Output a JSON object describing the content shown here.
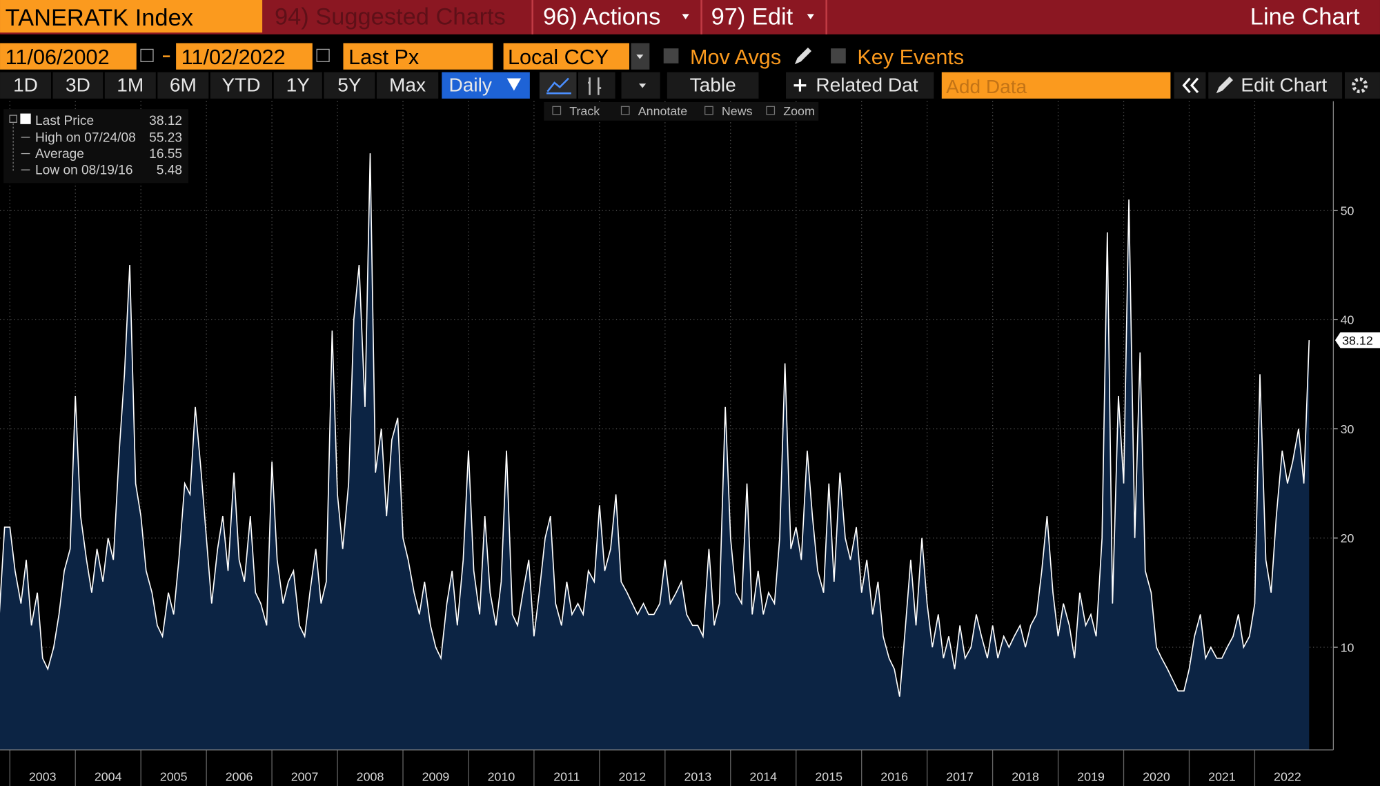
{
  "header": {
    "ticker": "TANERATK Index",
    "suggested": "94) Suggested Charts",
    "actions": "96) Actions",
    "edit": "97) Edit",
    "chart_kind": "Line Chart"
  },
  "controls": {
    "start_date": "11/06/2002",
    "end_date": "11/02/2022",
    "field": "Last Px",
    "currency": "Local CCY",
    "mov_avgs": "Mov Avgs",
    "key_events": "Key Events"
  },
  "periods": [
    "1D",
    "3D",
    "1M",
    "6M",
    "YTD",
    "1Y",
    "5Y",
    "Max"
  ],
  "frequency": "Daily",
  "buttons": {
    "table": "Table",
    "related": "Related Dat",
    "add_data": "Add Data",
    "edit_chart": "Edit Chart"
  },
  "chart_tools": [
    "Track",
    "Annotate",
    "News",
    "Zoom"
  ],
  "chart_data": {
    "type": "line",
    "x": [
      2002.83,
      2002.92,
      2003,
      2003.08,
      2003.17,
      2003.25,
      2003.33,
      2003.42,
      2003.5,
      2003.58,
      2003.67,
      2003.75,
      2003.83,
      2003.92,
      2004,
      2004.08,
      2004.17,
      2004.25,
      2004.33,
      2004.42,
      2004.5,
      2004.58,
      2004.67,
      2004.75,
      2004.83,
      2004.92,
      2005,
      2005.08,
      2005.17,
      2005.25,
      2005.33,
      2005.42,
      2005.5,
      2005.58,
      2005.67,
      2005.75,
      2005.83,
      2005.92,
      2006,
      2006.08,
      2006.17,
      2006.25,
      2006.33,
      2006.42,
      2006.5,
      2006.58,
      2006.67,
      2006.75,
      2006.83,
      2006.92,
      2007,
      2007.08,
      2007.17,
      2007.25,
      2007.33,
      2007.42,
      2007.5,
      2007.58,
      2007.67,
      2007.75,
      2007.83,
      2007.92,
      2008,
      2008.08,
      2008.17,
      2008.25,
      2008.33,
      2008.42,
      2008.5,
      2008.58,
      2008.67,
      2008.75,
      2008.83,
      2008.92,
      2009,
      2009.08,
      2009.17,
      2009.25,
      2009.33,
      2009.42,
      2009.5,
      2009.58,
      2009.67,
      2009.75,
      2009.83,
      2009.92,
      2010,
      2010.08,
      2010.17,
      2010.25,
      2010.33,
      2010.42,
      2010.5,
      2010.58,
      2010.67,
      2010.75,
      2010.83,
      2010.92,
      2011,
      2011.08,
      2011.17,
      2011.25,
      2011.33,
      2011.42,
      2011.5,
      2011.58,
      2011.67,
      2011.75,
      2011.83,
      2011.92,
      2012,
      2012.08,
      2012.17,
      2012.25,
      2012.33,
      2012.42,
      2012.5,
      2012.58,
      2012.67,
      2012.75,
      2012.83,
      2012.92,
      2013,
      2013.08,
      2013.17,
      2013.25,
      2013.33,
      2013.42,
      2013.5,
      2013.58,
      2013.67,
      2013.75,
      2013.83,
      2013.92,
      2014,
      2014.08,
      2014.17,
      2014.25,
      2014.33,
      2014.42,
      2014.5,
      2014.58,
      2014.67,
      2014.75,
      2014.83,
      2014.92,
      2015,
      2015.08,
      2015.17,
      2015.25,
      2015.33,
      2015.42,
      2015.5,
      2015.58,
      2015.67,
      2015.75,
      2015.83,
      2015.92,
      2016,
      2016.08,
      2016.17,
      2016.25,
      2016.33,
      2016.42,
      2016.5,
      2016.58,
      2016.67,
      2016.75,
      2016.83,
      2016.92,
      2017,
      2017.08,
      2017.17,
      2017.25,
      2017.33,
      2017.42,
      2017.5,
      2017.58,
      2017.67,
      2017.75,
      2017.83,
      2017.92,
      2018,
      2018.08,
      2018.17,
      2018.25,
      2018.33,
      2018.42,
      2018.5,
      2018.58,
      2018.67,
      2018.75,
      2018.83,
      2018.92,
      2019,
      2019.08,
      2019.17,
      2019.25,
      2019.33,
      2019.42,
      2019.5,
      2019.58,
      2019.67,
      2019.75,
      2019.83,
      2019.92,
      2020,
      2020.08,
      2020.17,
      2020.25,
      2020.33,
      2020.42,
      2020.5,
      2020.58,
      2020.67,
      2020.75,
      2020.83,
      2020.92,
      2021,
      2021.08,
      2021.17,
      2021.25,
      2021.33,
      2021.42,
      2021.5,
      2021.58,
      2021.67,
      2021.75,
      2021.83,
      2021.92,
      2022,
      2022.08,
      2022.17,
      2022.25,
      2022.33,
      2022.42,
      2022.5,
      2022.58,
      2022.67,
      2022.75,
      2022.83
    ],
    "series": [
      {
        "name": "Last Price",
        "color": "#ffffff",
        "fill": "#0c2444",
        "values": [
          12,
          21,
          21,
          17,
          14,
          18,
          12,
          15,
          9,
          8,
          10,
          13,
          17,
          19,
          33,
          22,
          18,
          15,
          19,
          16,
          20,
          18,
          28,
          35,
          45,
          25,
          22,
          17,
          15,
          12,
          11,
          15,
          13,
          18,
          25,
          24,
          32,
          26,
          20,
          14,
          19,
          22,
          17,
          26,
          18,
          16,
          22,
          15,
          14,
          12,
          27,
          18,
          14,
          16,
          17,
          12,
          11,
          15,
          19,
          14,
          16,
          39,
          24,
          19,
          25,
          40,
          45,
          32,
          55.23,
          26,
          30,
          22,
          29,
          31,
          20,
          18,
          15,
          13,
          16,
          12,
          10,
          9,
          14,
          17,
          12,
          18,
          28,
          17,
          13,
          22,
          15,
          12,
          16,
          28,
          13,
          12,
          15,
          18,
          11,
          15,
          20,
          22,
          14,
          12,
          16,
          13,
          14,
          13,
          17,
          16,
          23,
          17,
          19,
          24,
          16,
          15,
          14,
          13,
          14,
          13,
          13,
          14,
          18,
          14,
          15,
          16,
          13,
          12,
          12,
          11,
          19,
          12,
          14,
          32,
          20,
          15,
          14,
          25,
          13,
          17,
          13,
          15,
          14,
          20,
          36,
          19,
          21,
          18,
          28,
          22,
          17,
          15,
          25,
          16,
          26,
          20,
          18,
          21,
          15,
          18,
          13,
          16,
          11,
          9,
          8,
          5.48,
          12,
          18,
          12,
          20,
          14,
          10,
          13,
          9,
          11,
          8,
          12,
          9,
          10,
          13,
          11,
          9,
          12,
          9,
          11,
          10,
          11,
          12,
          10,
          12,
          13,
          17,
          22,
          15,
          11,
          14,
          12,
          9,
          15,
          12,
          13,
          11,
          20,
          48,
          14,
          33,
          25,
          51,
          20,
          37,
          17,
          15,
          10,
          9,
          8,
          7,
          6,
          6,
          8,
          11,
          13,
          9,
          10,
          9,
          9,
          10,
          11,
          13,
          10,
          11,
          14,
          35,
          18,
          15,
          22,
          28,
          25,
          27,
          30,
          25,
          38.12
        ]
      }
    ],
    "last_price": 38.12,
    "stats": [
      {
        "label": "High on 07/24/08",
        "value": 55.23
      },
      {
        "label": "Average",
        "value": 16.55
      },
      {
        "label": "Low on 08/19/16",
        "value": 5.48
      }
    ],
    "xlim": [
      2002.85,
      2023.2
    ],
    "xticks": [
      2003,
      2004,
      2005,
      2006,
      2007,
      2008,
      2009,
      2010,
      2011,
      2012,
      2013,
      2014,
      2015,
      2016,
      2017,
      2018,
      2019,
      2020,
      2021,
      2022
    ],
    "ylim": [
      0.6,
      60
    ],
    "yticks": [
      10,
      20,
      30,
      40,
      50
    ],
    "grid": true
  }
}
